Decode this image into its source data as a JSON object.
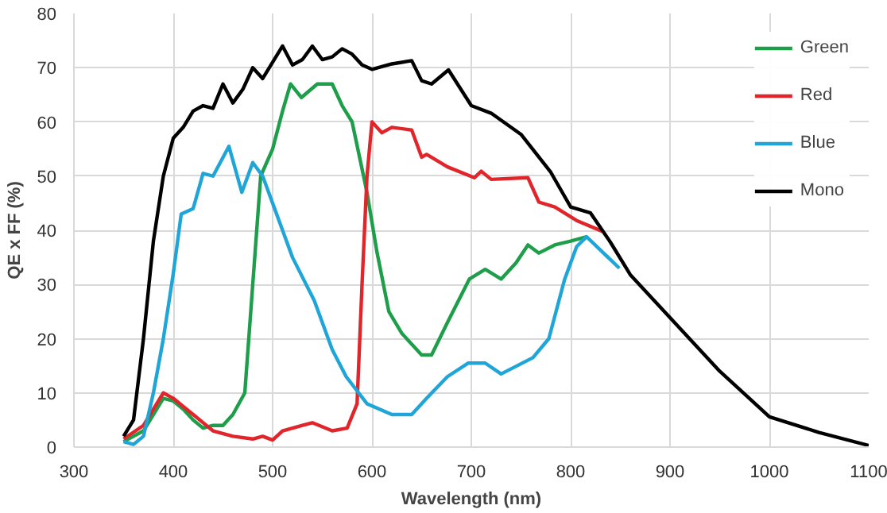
{
  "chart_data": {
    "type": "line",
    "xlabel": "Wavelength (nm)",
    "ylabel": "QE x FF (%)",
    "xlim": [
      300,
      1100
    ],
    "ylim": [
      0,
      80
    ],
    "xticks": [
      300,
      400,
      500,
      600,
      700,
      800,
      900,
      1000,
      1100
    ],
    "yticks": [
      0,
      10,
      20,
      30,
      40,
      50,
      60,
      70,
      80
    ],
    "grid": true,
    "legend": "top right",
    "marker": "none",
    "line_style": "solid",
    "series": [
      {
        "name": "Green",
        "color": "#1e9e4a",
        "x": [
          350,
          370,
          390,
          400,
          410,
          420,
          430,
          440,
          450,
          460,
          472,
          480,
          488,
          500,
          510,
          518,
          529,
          545,
          560,
          570,
          580,
          595,
          605,
          617,
          630,
          650,
          660,
          676,
          698,
          714,
          730,
          745,
          757,
          768,
          784,
          800,
          816
        ],
        "values": [
          1,
          3,
          9,
          8.5,
          7,
          5,
          3.5,
          4,
          4,
          6,
          10,
          30,
          50,
          55,
          62,
          67,
          64.5,
          67,
          67,
          63,
          60,
          47,
          36,
          25,
          21,
          17,
          17,
          23,
          31,
          32.8,
          31,
          34,
          37.3,
          35.8,
          37.3,
          38,
          38.8
        ]
      },
      {
        "name": "Red",
        "color": "#e0252b",
        "x": [
          350,
          370,
          390,
          400,
          420,
          440,
          460,
          480,
          490,
          500,
          510,
          530,
          540,
          560,
          575,
          585,
          590,
          595,
          600,
          610,
          620,
          640,
          650,
          655,
          676,
          703,
          710,
          720,
          757,
          768,
          784,
          806,
          832
        ],
        "values": [
          1.5,
          4,
          10,
          9,
          6,
          3,
          2,
          1.5,
          2,
          1.3,
          3,
          4,
          4.5,
          3,
          3.5,
          8,
          30,
          50,
          60,
          58,
          59,
          58.5,
          53.5,
          54,
          51.7,
          49.7,
          50.9,
          49.4,
          49.7,
          45.2,
          44.3,
          41.8,
          39.8
        ]
      },
      {
        "name": "Blue",
        "color": "#1fa5d8",
        "x": [
          350,
          360,
          370,
          380,
          390,
          400,
          408,
          420,
          430,
          440,
          456,
          469,
          480,
          490,
          500,
          510,
          520,
          542,
          560,
          574,
          595,
          620,
          640,
          655,
          676,
          697,
          714,
          730,
          762,
          778,
          794,
          806,
          816,
          832,
          849
        ],
        "values": [
          1,
          0.5,
          2,
          10,
          20,
          32,
          43,
          44,
          50.5,
          50,
          55.5,
          47,
          52.5,
          50,
          45,
          40,
          35,
          27,
          18,
          13,
          8,
          6,
          6,
          9,
          13,
          15.5,
          15.5,
          13.5,
          16.5,
          20,
          31,
          37,
          38.8,
          36,
          33
        ]
      },
      {
        "name": "Mono",
        "color": "#000000",
        "x": [
          350,
          360,
          370,
          380,
          390,
          400,
          410,
          420,
          430,
          440,
          450,
          460,
          470,
          480,
          490,
          500,
          510,
          520,
          530,
          540,
          550,
          560,
          570,
          580,
          590,
          600,
          620,
          640,
          650,
          660,
          677,
          700,
          720,
          750,
          780,
          800,
          820,
          840,
          860,
          900,
          950,
          1000,
          1050,
          1100
        ],
        "values": [
          2,
          5,
          20,
          38,
          50,
          57,
          59,
          62,
          63,
          62.5,
          67,
          63.5,
          66,
          70,
          68,
          71,
          74,
          70.5,
          71.5,
          74,
          71.5,
          72,
          73.5,
          72.5,
          70.5,
          69.7,
          70.7,
          71.3,
          67.6,
          67,
          69.6,
          63,
          61.6,
          57.7,
          50.7,
          44.3,
          43.2,
          37.8,
          31.8,
          23.9,
          14,
          5.6,
          2.7,
          0.3
        ]
      }
    ]
  }
}
